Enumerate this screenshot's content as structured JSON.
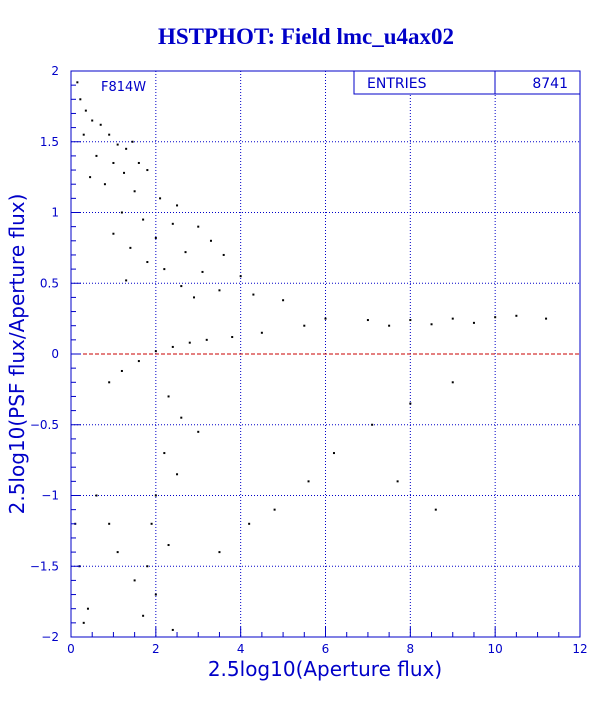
{
  "page": {
    "title": "HSTPHOT: Field lmc_u4ax02"
  },
  "colors": {
    "axis": "#0000c8",
    "grid": "#0000c8",
    "points": "#000000",
    "zero_line": "#c80000",
    "background": "#ffffff"
  },
  "chart_data": {
    "type": "scatter",
    "title": "HSTPHOT: Field lmc_u4ax02",
    "xlabel": "2.5log10(Aperture flux)",
    "ylabel": "2.5log10(PSF flux/Aperture flux)",
    "xlim": [
      0,
      12
    ],
    "ylim": [
      -2,
      2
    ],
    "xticks": [
      "0",
      "2",
      "4",
      "6",
      "8",
      "10",
      "12"
    ],
    "yticks": [
      "-2",
      "-1.5",
      "-1",
      "-0.5",
      "0",
      "0.5",
      "1",
      "1.5",
      "2"
    ],
    "grid": true,
    "reference_line": {
      "y": 0,
      "style": "dashed"
    },
    "annotation": "F814W",
    "stats_box": {
      "label": "ENTRIES",
      "value": "8741",
      "placement": "top-right"
    },
    "series": [
      {
        "entries": 8741,
        "points": [
          [
            0.15,
            1.92
          ],
          [
            0.22,
            1.8
          ],
          [
            0.35,
            1.72
          ],
          [
            0.5,
            1.65
          ],
          [
            0.3,
            1.55
          ],
          [
            0.7,
            1.62
          ],
          [
            0.9,
            1.55
          ],
          [
            1.1,
            1.48
          ],
          [
            1.3,
            1.45
          ],
          [
            1.45,
            1.5
          ],
          [
            0.6,
            1.4
          ],
          [
            1.0,
            1.35
          ],
          [
            1.25,
            1.28
          ],
          [
            1.6,
            1.35
          ],
          [
            1.8,
            1.3
          ],
          [
            0.45,
            1.25
          ],
          [
            0.8,
            1.2
          ],
          [
            1.5,
            1.15
          ],
          [
            2.1,
            1.1
          ],
          [
            2.5,
            1.05
          ],
          [
            1.2,
            1.0
          ],
          [
            1.7,
            0.95
          ],
          [
            2.4,
            0.92
          ],
          [
            3.0,
            0.9
          ],
          [
            1.0,
            0.85
          ],
          [
            2.0,
            0.82
          ],
          [
            3.3,
            0.8
          ],
          [
            1.4,
            0.75
          ],
          [
            2.7,
            0.72
          ],
          [
            3.6,
            0.7
          ],
          [
            1.8,
            0.65
          ],
          [
            2.2,
            0.6
          ],
          [
            3.1,
            0.58
          ],
          [
            4.0,
            0.55
          ],
          [
            1.3,
            0.52
          ],
          [
            2.6,
            0.48
          ],
          [
            3.5,
            0.45
          ],
          [
            4.3,
            0.42
          ],
          [
            5.0,
            0.38
          ],
          [
            2.9,
            0.4
          ],
          [
            6.0,
            0.25
          ],
          [
            7.0,
            0.24
          ],
          [
            8.0,
            0.24
          ],
          [
            9.0,
            0.25
          ],
          [
            10.0,
            0.26
          ],
          [
            10.5,
            0.27
          ],
          [
            11.2,
            0.25
          ],
          [
            9.5,
            0.22
          ],
          [
            8.5,
            0.21
          ],
          [
            7.5,
            0.2
          ],
          [
            5.5,
            0.2
          ],
          [
            4.5,
            0.15
          ],
          [
            3.8,
            0.12
          ],
          [
            3.2,
            0.1
          ],
          [
            2.8,
            0.08
          ],
          [
            2.4,
            0.05
          ],
          [
            2.0,
            0.02
          ],
          [
            1.6,
            -0.05
          ],
          [
            1.2,
            -0.12
          ],
          [
            0.9,
            -0.2
          ],
          [
            2.3,
            -0.3
          ],
          [
            2.6,
            -0.45
          ],
          [
            3.0,
            -0.55
          ],
          [
            2.2,
            -0.7
          ],
          [
            2.5,
            -0.85
          ],
          [
            2.0,
            -1.0
          ],
          [
            1.9,
            -1.2
          ],
          [
            2.3,
            -1.35
          ],
          [
            1.8,
            -1.5
          ],
          [
            2.0,
            -1.7
          ],
          [
            1.7,
            -1.85
          ],
          [
            2.4,
            -1.95
          ],
          [
            1.5,
            -1.6
          ],
          [
            1.1,
            -1.4
          ],
          [
            0.9,
            -1.2
          ],
          [
            0.6,
            -1.0
          ],
          [
            0.4,
            -1.8
          ],
          [
            0.2,
            -1.5
          ],
          [
            0.1,
            -1.2
          ],
          [
            0.3,
            -1.9
          ],
          [
            3.5,
            -1.4
          ],
          [
            4.2,
            -1.2
          ],
          [
            4.8,
            -1.1
          ],
          [
            5.6,
            -0.9
          ],
          [
            6.2,
            -0.7
          ],
          [
            7.1,
            -0.5
          ],
          [
            8.0,
            -0.35
          ],
          [
            9.0,
            -0.2
          ],
          [
            8.6,
            -1.1
          ],
          [
            7.7,
            -0.9
          ]
        ]
      }
    ]
  }
}
